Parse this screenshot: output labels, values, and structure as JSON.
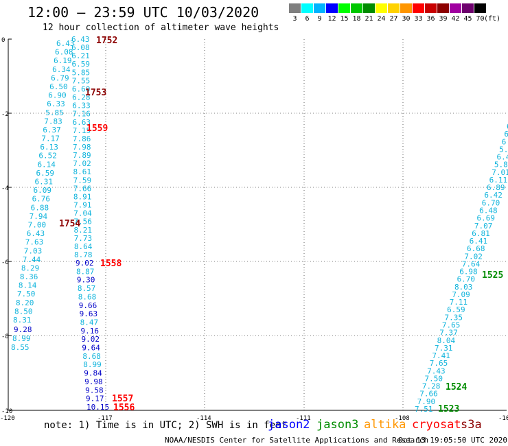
{
  "header": {
    "title": "12:00 – 23:59 UTC 10/03/2020",
    "subtitle": "12 hour collection of altimeter wave heights"
  },
  "colorbar": {
    "unit": "(ft)",
    "bins": [
      {
        "label": "3",
        "color": "#7f7f7f"
      },
      {
        "label": "6",
        "color": "#00ffff"
      },
      {
        "label": "9",
        "color": "#00b4ff"
      },
      {
        "label": "12",
        "color": "#0000ff"
      },
      {
        "label": "15",
        "color": "#00ff00"
      },
      {
        "label": "18",
        "color": "#00c800"
      },
      {
        "label": "21",
        "color": "#008c00"
      },
      {
        "label": "24",
        "color": "#ffff00"
      },
      {
        "label": "27",
        "color": "#ffd200"
      },
      {
        "label": "30",
        "color": "#ff9600"
      },
      {
        "label": "33",
        "color": "#ff0000"
      },
      {
        "label": "36",
        "color": "#c80000"
      },
      {
        "label": "39",
        "color": "#8c0000"
      },
      {
        "label": "42",
        "color": "#a000a0"
      },
      {
        "label": "45",
        "color": "#6e006e"
      },
      {
        "label": "70",
        "color": "#000000"
      }
    ]
  },
  "axes": {
    "x_ticks": [
      "-120",
      "-117",
      "-114",
      "-111",
      "-108",
      "-10"
    ],
    "y_ticks": [
      "0",
      "-2",
      "-4",
      "-6",
      "-8",
      "-10"
    ]
  },
  "colors": {
    "cyan": "#10b4dc",
    "blue": "#0000c8",
    "green": "#008c00",
    "red": "#ff0000",
    "darkred": "#8c0000"
  },
  "tracks": {
    "track_a": {
      "color": "cyan",
      "labels": [
        "6.43",
        "6.08",
        "6.19",
        "6.34",
        "6.79",
        "6.50",
        "6.90",
        "6.33",
        "5.85",
        "7.83",
        "6.37",
        "7.17",
        "6.13",
        "6.52",
        "6.14",
        "6.59",
        "6.31",
        "6.09",
        "6.76",
        "6.88",
        "7.94",
        "7.00",
        "6.43",
        "7.63",
        "7.03",
        "7.44",
        "8.29",
        "8.36",
        "8.14",
        "7.50",
        "8.20",
        "8.50",
        "8.31"
      ]
    },
    "track_a_tail": {
      "color": "blue",
      "labels": [
        "9.28"
      ]
    },
    "track_a_end": {
      "color": "cyan",
      "labels": [
        "8.99",
        "8.55"
      ]
    },
    "track_b_top": {
      "color": "cyan",
      "labels": [
        "6.43",
        "6.08",
        "6.21",
        "6.59",
        "5.85",
        "7.55",
        "6.60",
        "6.28",
        "6.33",
        "7.16",
        "6.63",
        "7.15",
        "7.86",
        "7.98",
        "7.89",
        "7.02",
        "8.61",
        "7.59",
        "7.66",
        "8.91",
        "7.91",
        "7.04",
        "7.56",
        "8.21",
        "7.73",
        "8.64",
        "8.78"
      ]
    },
    "track_b_bottom": {
      "labels": [
        {
          "t": "9.02",
          "c": "blue"
        },
        {
          "t": "8.87",
          "c": "cyan"
        },
        {
          "t": "9.30",
          "c": "blue"
        },
        {
          "t": "8.57",
          "c": "cyan"
        },
        {
          "t": "8.68",
          "c": "cyan"
        },
        {
          "t": "9.66",
          "c": "blue"
        },
        {
          "t": "9.63",
          "c": "blue"
        },
        {
          "t": "8.47",
          "c": "cyan"
        },
        {
          "t": "9.16",
          "c": "blue"
        },
        {
          "t": "9.02",
          "c": "blue"
        },
        {
          "t": "9.64",
          "c": "blue"
        },
        {
          "t": "8.68",
          "c": "cyan"
        },
        {
          "t": "8.99",
          "c": "cyan"
        },
        {
          "t": "9.84",
          "c": "blue"
        },
        {
          "t": "9.98",
          "c": "blue"
        },
        {
          "t": "9.58",
          "c": "blue"
        },
        {
          "t": "9.17",
          "c": "blue"
        },
        {
          "t": "10.15",
          "c": "blue"
        }
      ]
    },
    "track_c": {
      "color": "cyan",
      "labels": [
        "6",
        "6",
        "6.4",
        "5.8",
        "6.46",
        "5.80",
        "7.01",
        "6.11",
        "6.89",
        "6.42",
        "6.70",
        "6.48",
        "6.69",
        "7.07",
        "6.81",
        "6.41",
        "6.68",
        "7.02",
        "7.64",
        "6.98",
        "6.70",
        "8.03",
        "7.09",
        "7.11",
        "6.59",
        "7.35",
        "7.65",
        "7.37",
        "8.04",
        "7.31",
        "7.41",
        "7.65",
        "7.43",
        "7.50",
        "7.28",
        "7.66",
        "7.90",
        "7.51"
      ]
    }
  },
  "time_labels": [
    {
      "t": "1752",
      "c": "darkred"
    },
    {
      "t": "1753",
      "c": "darkred"
    },
    {
      "t": "1559",
      "c": "red"
    },
    {
      "t": "1754",
      "c": "darkred"
    },
    {
      "t": "1558",
      "c": "red"
    },
    {
      "t": "1557",
      "c": "red"
    },
    {
      "t": "1556",
      "c": "red"
    },
    {
      "t": "1525",
      "c": "green"
    },
    {
      "t": "1524",
      "c": "green"
    },
    {
      "t": "1523",
      "c": "green"
    }
  ],
  "footer": {
    "note": "note: 1) Time is in UTC; 2) SWH is in feet",
    "legend": [
      {
        "label": "jason2",
        "color": "#0000ff"
      },
      {
        "label": "jason3",
        "color": "#008c00"
      },
      {
        "label": "altika",
        "color": "#ff9600"
      },
      {
        "label": "cryosat",
        "color": "#ff0000"
      },
      {
        "label": "s3a",
        "color": "#8c0000"
      }
    ],
    "credit": "NOAA/NESDIS Center for Satellite Applications and Research",
    "timestamp": "Oct 13 19:05:50 UTC 2020"
  }
}
